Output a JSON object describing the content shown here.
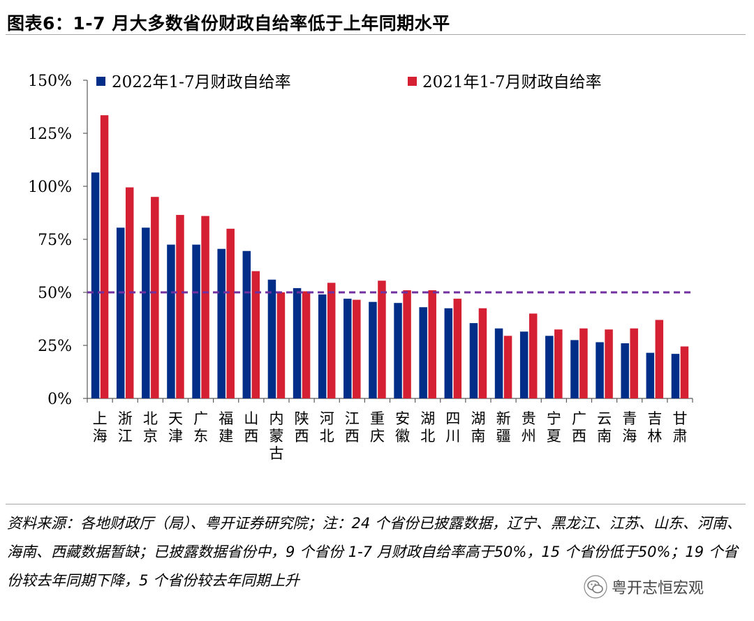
{
  "title": "图表6：1-7 月大多数省份财政自给率低于上年同期水平",
  "chart_data": {
    "type": "bar",
    "categories": [
      [
        "上",
        "海"
      ],
      [
        "浙",
        "江"
      ],
      [
        "北",
        "京"
      ],
      [
        "天",
        "津"
      ],
      [
        "广",
        "东"
      ],
      [
        "福",
        "建"
      ],
      [
        "山",
        "西"
      ],
      [
        "内",
        "蒙",
        "古"
      ],
      [
        "陕",
        "西"
      ],
      [
        "河",
        "北"
      ],
      [
        "江",
        "西"
      ],
      [
        "重",
        "庆"
      ],
      [
        "安",
        "徽"
      ],
      [
        "湖",
        "北"
      ],
      [
        "四",
        "川"
      ],
      [
        "湖",
        "南"
      ],
      [
        "新",
        "疆"
      ],
      [
        "贵",
        "州"
      ],
      [
        "宁",
        "夏"
      ],
      [
        "广",
        "西"
      ],
      [
        "云",
        "南"
      ],
      [
        "青",
        "海"
      ],
      [
        "吉",
        "林"
      ],
      [
        "甘",
        "肃"
      ]
    ],
    "series": [
      {
        "name": "2022年1-7月财政自给率",
        "color": "#002d87",
        "values": [
          106.5,
          80.5,
          80.5,
          72.5,
          72.5,
          70.5,
          69.5,
          56,
          52,
          49,
          47,
          45.5,
          45,
          43,
          42.5,
          35.5,
          33,
          31.5,
          29.5,
          27.5,
          26.5,
          26,
          21.5,
          21
        ]
      },
      {
        "name": "2021年1-7月财政自给率",
        "color": "#d42032",
        "values": [
          133.5,
          99.5,
          95,
          86.5,
          86,
          80,
          60,
          50,
          50.5,
          54.5,
          46.5,
          55.5,
          51,
          51,
          47,
          42.5,
          29.5,
          40,
          32.5,
          33,
          32.5,
          33,
          37,
          24.5
        ]
      }
    ],
    "yticks": [
      "0%",
      "25%",
      "50%",
      "75%",
      "100%",
      "125%",
      "150%"
    ],
    "ylim": [
      0,
      150
    ],
    "reference_line": {
      "value": 50,
      "color": "#7030a0",
      "style": "dashed"
    },
    "legend": "top",
    "grid": false
  },
  "source_note": "资料来源：各地财政厅（局）、粤开证券研究院；注：24 个省份已披露数据，辽宁、黑龙江、江苏、山东、河南、海南、西藏数据暂缺；已披露数据省份中，9 个省份 1-7 月财政自给率高于50%，15 个省份低于50%；19 个省份较去年同期下降，5 个省份较去年同期上升",
  "watermark": {
    "icon": "wechat-icon",
    "text": "粤开志恒宏观"
  }
}
